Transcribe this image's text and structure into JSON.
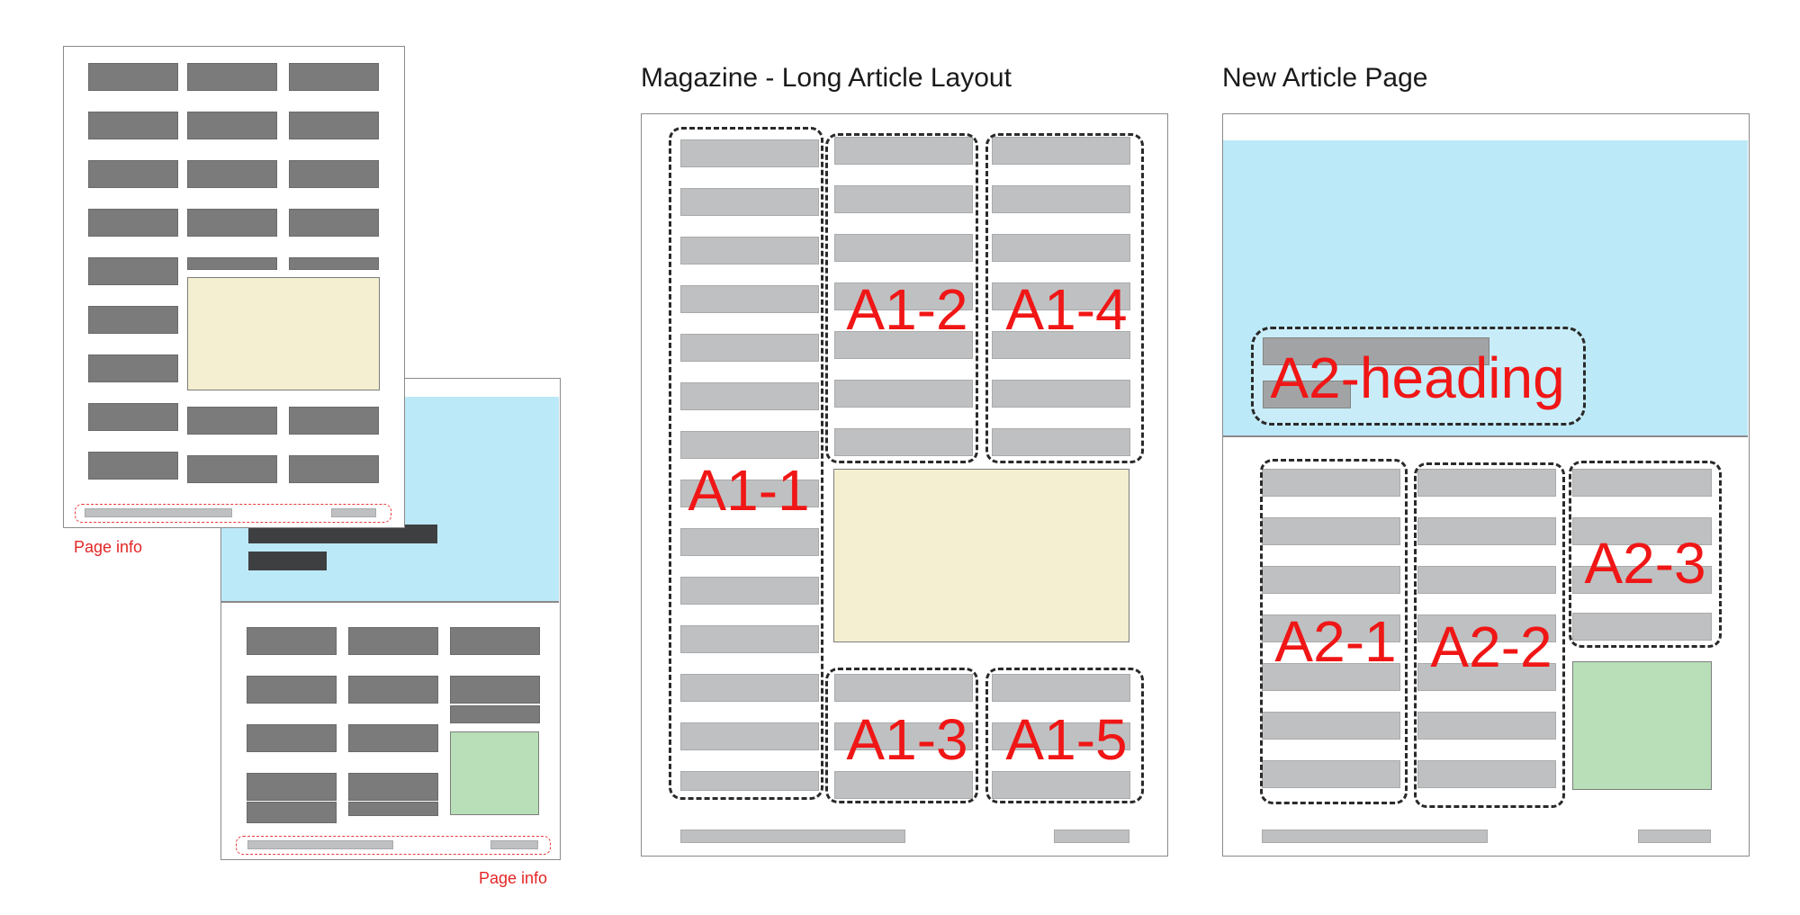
{
  "titles": {
    "magazine": "Magazine - Long Article Layout",
    "new_article": "New Article Page"
  },
  "labels": {
    "page_info": "Page info",
    "a1_1": "A1-1",
    "a1_2": "A1-2",
    "a1_3": "A1-3",
    "a1_4": "A1-4",
    "a1_5": "A1-5",
    "a2_heading": "A2-heading",
    "a2_1": "A2-1",
    "a2_2": "A2-2",
    "a2_3": "A2-3"
  },
  "colors": {
    "text_bar_dark": "#7b7b7c",
    "text_bar_light": "#bfc0c1",
    "hero_blue": "#bce9f7",
    "image_yellow": "#f3efd0",
    "image_green": "#b8dfb7",
    "region_label_red": "#f01616"
  }
}
